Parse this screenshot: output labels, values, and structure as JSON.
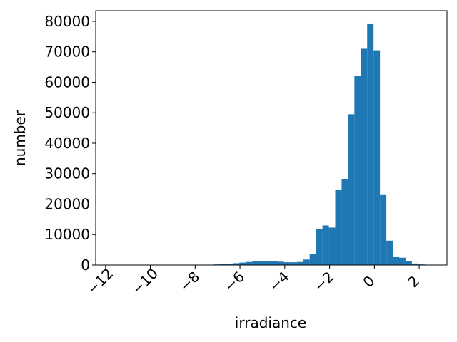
{
  "chart_data": {
    "type": "histogram",
    "xlabel": "irradiance",
    "ylabel": "number",
    "color": "#1f77b4",
    "bins": [
      -11.73,
      -11.445,
      -11.16,
      -10.874,
      -10.589,
      -10.304,
      -10.019,
      -9.734,
      -9.448,
      -9.163,
      -8.878,
      -8.593,
      -8.308,
      -8.022,
      -7.737,
      -7.452,
      -7.167,
      -6.882,
      -6.596,
      -6.311,
      -6.026,
      -5.741,
      -5.456,
      -5.17,
      -4.885,
      -4.6,
      -4.315,
      -4.03,
      -3.744,
      -3.459,
      -3.174,
      -2.889,
      -2.604,
      -2.318,
      -2.033,
      -1.748,
      -1.463,
      -1.178,
      -0.892,
      -0.607,
      -0.322,
      -0.037,
      0.248,
      0.534,
      0.819,
      1.104,
      1.389,
      1.674,
      1.96,
      2.245,
      2.53
    ],
    "values": [
      5,
      0,
      0,
      0,
      0,
      2,
      3,
      5,
      8,
      10,
      15,
      20,
      30,
      50,
      80,
      120,
      200,
      300,
      400,
      600,
      800,
      1000,
      1200,
      1400,
      1400,
      1300,
      1100,
      900,
      900,
      1000,
      1800,
      3500,
      11700,
      13000,
      12300,
      24800,
      28300,
      49500,
      62000,
      71000,
      79300,
      70500,
      23200,
      8000,
      2700,
      2400,
      1200,
      500,
      200,
      50
    ],
    "xlim": [
      -12.44,
      3.24
    ],
    "ylim": [
      0,
      83500
    ],
    "xticks": [
      {
        "value": -12,
        "label": "−12"
      },
      {
        "value": -10,
        "label": "−10"
      },
      {
        "value": -8,
        "label": "−8"
      },
      {
        "value": -6,
        "label": "−6"
      },
      {
        "value": -4,
        "label": "−4"
      },
      {
        "value": -2,
        "label": "−2"
      },
      0,
      2
    ],
    "yticks": [
      0,
      10000,
      20000,
      30000,
      40000,
      50000,
      60000,
      70000,
      80000
    ]
  }
}
